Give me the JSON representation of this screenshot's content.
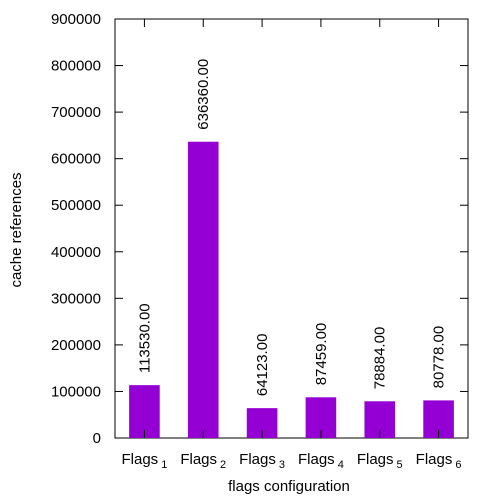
{
  "chart_data": {
    "type": "bar",
    "title": "",
    "xlabel": "flags configuration",
    "ylabel": "cache references",
    "categories": [
      {
        "base": "Flags",
        "sub": "1"
      },
      {
        "base": "Flags",
        "sub": "2"
      },
      {
        "base": "Flags",
        "sub": "3"
      },
      {
        "base": "Flags",
        "sub": "4"
      },
      {
        "base": "Flags",
        "sub": "5"
      },
      {
        "base": "Flags",
        "sub": "6"
      }
    ],
    "values": [
      113530,
      636360,
      64123,
      87459,
      78884,
      80778
    ],
    "value_labels": [
      "113530.00",
      "636360.00",
      "64123.00",
      "87459.00",
      "78884.00",
      "80778.00"
    ],
    "ylim": [
      0,
      900000
    ],
    "yticks": [
      0,
      100000,
      200000,
      300000,
      400000,
      500000,
      600000,
      700000,
      800000,
      900000
    ],
    "ytick_labels": [
      "0",
      "100000",
      "200000",
      "300000",
      "400000",
      "500000",
      "600000",
      "700000",
      "800000",
      "900000"
    ],
    "bar_color": "#9400d3",
    "grid": false,
    "legend": "none"
  }
}
